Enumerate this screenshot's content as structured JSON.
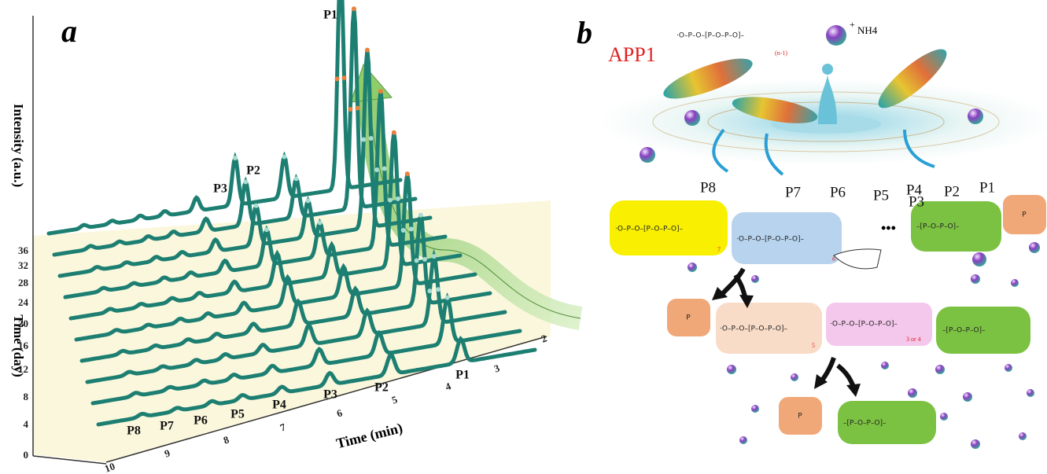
{
  "panel_a": {
    "label": "a",
    "y_axis_title": "Intensity (a.u.)",
    "day_axis_title": "Time (day)",
    "time_axis_title": "Time (min)",
    "day_ticks": [
      0,
      4,
      8,
      12,
      16,
      20,
      24,
      28,
      32,
      36
    ],
    "time_ticks": [
      10,
      9,
      8,
      7,
      6,
      5,
      4,
      3,
      2
    ],
    "front_peak_labels": [
      "P8",
      "P7",
      "P6",
      "P5",
      "P4",
      "P3",
      "P2",
      "P1"
    ],
    "back_peak_labels": [
      "P3",
      "P2",
      "P1"
    ]
  },
  "panel_b": {
    "label": "b",
    "compound": "APP1",
    "chain_formula": "·O–P–O–[P–O–P–O]–",
    "repeat": "(n-1)",
    "cation": "NH4",
    "charge": "+",
    "species_labels": [
      "P8",
      "P7",
      "P6",
      "P5",
      "P4",
      "P3",
      "P2",
      "P1"
    ],
    "ellipsis": "•••",
    "box_formula": "·O–P–O–[P–O–P–O]–",
    "ring_formula": "–[P–O–P–O]–",
    "phosphate": "P",
    "subscripts": [
      "7",
      "6",
      "5",
      "3 or 4"
    ]
  }
}
